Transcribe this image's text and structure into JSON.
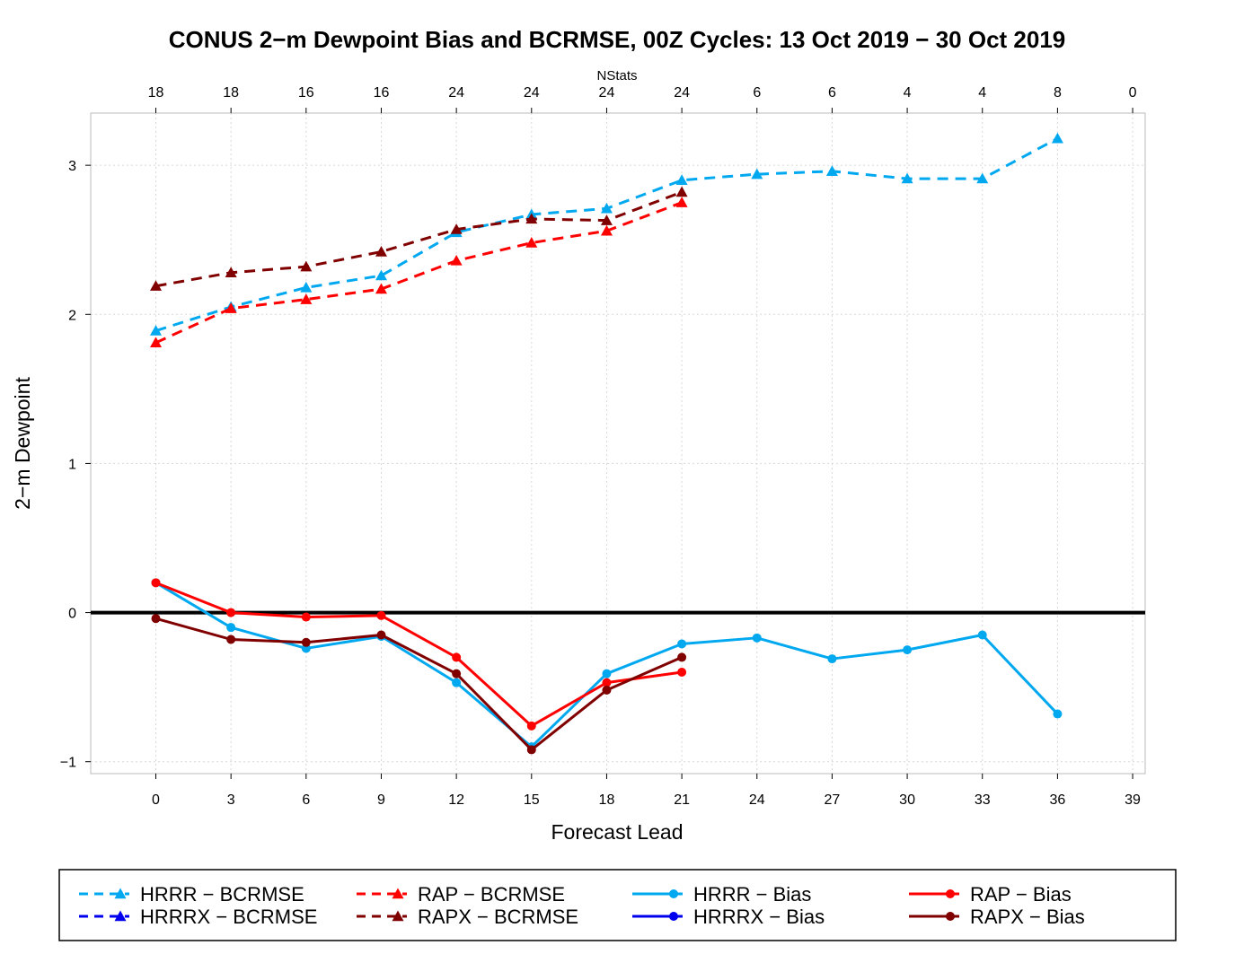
{
  "chart_data": {
    "type": "line",
    "title": "CONUS 2−m Dewpoint Bias and BCRMSE, 00Z Cycles: 13 Oct 2019 − 30 Oct 2019",
    "xlabel": "Forecast Lead",
    "ylabel": "2−m Dewpoint",
    "top_axis_label": "NStats",
    "x_ticks": [
      0,
      3,
      6,
      9,
      12,
      15,
      18,
      21,
      24,
      27,
      30,
      33,
      36,
      39
    ],
    "x_tick_labels": [
      "0",
      "3",
      "6",
      "9",
      "12",
      "15",
      "18",
      "21",
      "24",
      "27",
      "30",
      "33",
      "36",
      "39"
    ],
    "nstats": [
      "18",
      "18",
      "16",
      "16",
      "24",
      "24",
      "24",
      "24",
      "6",
      "6",
      "4",
      "4",
      "8",
      "0"
    ],
    "y_ticks": [
      -1,
      0,
      1,
      2,
      3
    ],
    "y_tick_labels": [
      "−1",
      "0",
      "1",
      "2",
      "3"
    ],
    "xlim": [
      -2.6,
      39.5
    ],
    "ylim": [
      -1.08,
      3.35
    ],
    "grid": true,
    "zero_line": true,
    "legend_position": "bottom",
    "series": [
      {
        "name": "HRRR − BCRMSE",
        "color": "#00a8f0",
        "dash": true,
        "marker": "triangle",
        "x": [
          0,
          3,
          6,
          9,
          12,
          15,
          18,
          21,
          24,
          27,
          30,
          33,
          36
        ],
        "values": [
          1.89,
          2.05,
          2.18,
          2.26,
          2.55,
          2.67,
          2.71,
          2.9,
          2.94,
          2.96,
          2.91,
          2.91,
          3.18
        ]
      },
      {
        "name": "HRRRX − BCRMSE",
        "color": "#0000ee",
        "dash": true,
        "marker": "triangle",
        "x": [],
        "values": []
      },
      {
        "name": "RAP − BCRMSE",
        "color": "#ff0000",
        "dash": true,
        "marker": "triangle",
        "x": [
          0,
          3,
          6,
          9,
          12,
          15,
          18,
          21
        ],
        "values": [
          1.81,
          2.04,
          2.1,
          2.17,
          2.36,
          2.48,
          2.56,
          2.75
        ]
      },
      {
        "name": "RAPX − BCRMSE",
        "color": "#800000",
        "dash": true,
        "marker": "triangle",
        "x": [
          0,
          3,
          6,
          9,
          12,
          15,
          18,
          21
        ],
        "values": [
          2.19,
          2.28,
          2.32,
          2.42,
          2.57,
          2.64,
          2.63,
          2.82
        ]
      },
      {
        "name": "HRRR − Bias",
        "color": "#00a8f0",
        "dash": false,
        "marker": "circle",
        "x": [
          0,
          3,
          6,
          9,
          12,
          15,
          18,
          21,
          24,
          27,
          30,
          33,
          36
        ],
        "values": [
          0.2,
          -0.1,
          -0.24,
          -0.16,
          -0.47,
          -0.9,
          -0.41,
          -0.21,
          -0.17,
          -0.31,
          -0.25,
          -0.15,
          -0.68
        ]
      },
      {
        "name": "HRRRX − Bias",
        "color": "#0000ee",
        "dash": false,
        "marker": "circle",
        "x": [],
        "values": []
      },
      {
        "name": "RAP − Bias",
        "color": "#ff0000",
        "dash": false,
        "marker": "circle",
        "x": [
          0,
          3,
          6,
          9,
          12,
          15,
          18,
          21
        ],
        "values": [
          0.2,
          0.0,
          -0.03,
          -0.02,
          -0.3,
          -0.76,
          -0.47,
          -0.4
        ]
      },
      {
        "name": "RAPX − Bias",
        "color": "#800000",
        "dash": false,
        "marker": "circle",
        "x": [
          0,
          3,
          6,
          9,
          12,
          15,
          18,
          21
        ],
        "values": [
          -0.04,
          -0.18,
          -0.2,
          -0.15,
          -0.41,
          -0.92,
          -0.52,
          -0.3
        ]
      }
    ]
  }
}
